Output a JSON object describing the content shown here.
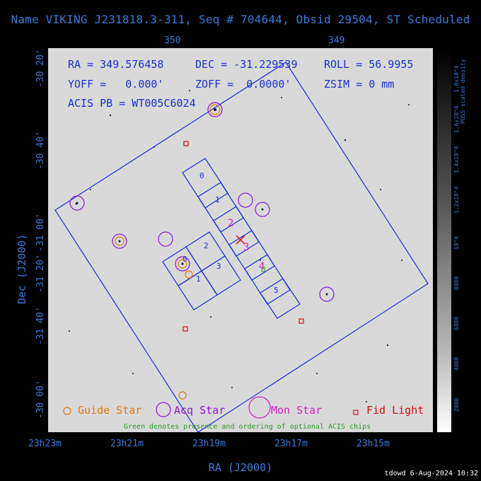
{
  "title": "Name VIKING J231818.3-311, Seq # 704644, Obsid 29504, ST Scheduled",
  "top_axis": {
    "ticks": [
      "350",
      "349"
    ]
  },
  "bottom_axis": {
    "ticks": [
      "23h23m",
      "23h21m",
      "23h19m",
      "23h17m",
      "23h15m"
    ],
    "label": "RA (J2000)"
  },
  "left_axis": {
    "ticks": [
      "-30 20'",
      "-30 40'",
      "-31 00'",
      "-31 20'",
      "-31 40'",
      "-30 00'"
    ],
    "label": "Dec (J2000)"
  },
  "info": {
    "ra": "RA = 349.576458",
    "dec": "DEC = -31.229539",
    "roll": "ROLL = 56.9955",
    "yoff": "YOFF =   0.000'",
    "zoff": "ZOFF =  0.0000'",
    "zsim": "ZSIM = 0 mm",
    "acis": "ACIS PB = WT005C6024"
  },
  "chips": {
    "s_labels": [
      "0",
      "1",
      "2",
      "3",
      "4",
      "5"
    ],
    "i_labels": [
      "0",
      "2",
      "1",
      "3"
    ]
  },
  "legend": {
    "guide": "Guide Star",
    "acq": "Acq Star",
    "mon": "Mon Star",
    "fid": "Fid Light"
  },
  "green_note": "Green denotes presence and ordering of optional ACIS chips",
  "colorbar": {
    "title": "POSS scaled density",
    "ticks": [
      "2000",
      "4000",
      "6000",
      "8000",
      "10^4",
      "1.2x10^4",
      "1.4x10^4",
      "1.6x10^4",
      "1.8x10^4"
    ]
  },
  "footer": "tdowd  6-Aug-2024 10:32",
  "colors": {
    "guide": "#e07a10",
    "acq": "#8a1ad0",
    "mon": "#d020c0",
    "fid": "#d01010",
    "fov": "#1a2fd6"
  }
}
